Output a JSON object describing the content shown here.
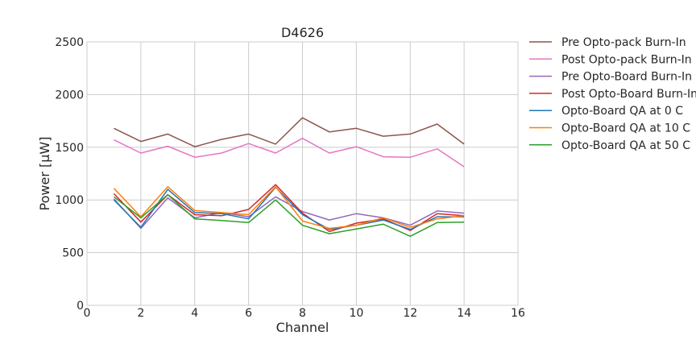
{
  "chart_data": {
    "type": "line",
    "title": "D4626",
    "xlabel": "Channel",
    "ylabel": "Power [μW]",
    "xlim": [
      0,
      16
    ],
    "ylim": [
      0,
      2500
    ],
    "xticks": [
      0,
      2,
      4,
      6,
      8,
      10,
      12,
      14,
      16
    ],
    "yticks": [
      0,
      500,
      1000,
      1500,
      2000,
      2500
    ],
    "grid": true,
    "legend_position": "right-outside",
    "x": [
      1,
      2,
      3,
      4,
      5,
      6,
      7,
      8,
      9,
      10,
      11,
      12,
      13,
      14
    ],
    "series": [
      {
        "name": "Pre Opto-pack Burn-In",
        "color": "#8c564b",
        "values": [
          1680,
          1555,
          1625,
          1505,
          1575,
          1625,
          1530,
          1780,
          1645,
          1680,
          1605,
          1625,
          1720,
          1530
        ]
      },
      {
        "name": "Post Opto-pack Burn-In",
        "color": "#e377c2",
        "values": [
          1570,
          1445,
          1510,
          1405,
          1445,
          1535,
          1445,
          1585,
          1445,
          1505,
          1410,
          1405,
          1485,
          1315
        ]
      },
      {
        "name": "Pre Opto-Board Burn-In",
        "color": "#9467bd",
        "values": [
          1010,
          730,
          1020,
          830,
          880,
          840,
          1030,
          890,
          810,
          870,
          830,
          760,
          895,
          875
        ]
      },
      {
        "name": "Post Opto-Board Burn-In",
        "color": "#d62728",
        "values": [
          1060,
          790,
          1050,
          860,
          850,
          910,
          1145,
          875,
          700,
          780,
          820,
          710,
          870,
          850
        ]
      },
      {
        "name": "Opto-Board QA at 0 C",
        "color": "#1f77b4",
        "values": [
          1000,
          740,
          1100,
          880,
          870,
          820,
          1120,
          860,
          720,
          760,
          810,
          720,
          840,
          840
        ]
      },
      {
        "name": "Opto-Board QA at 10 C",
        "color": "#ff7f0e",
        "values": [
          1110,
          840,
          1125,
          900,
          880,
          860,
          1125,
          800,
          730,
          760,
          830,
          740,
          820,
          850
        ]
      },
      {
        "name": "Opto-Board QA at 50 C",
        "color": "#2ca02c",
        "values": [
          1030,
          830,
          1050,
          820,
          805,
          785,
          1000,
          760,
          680,
          725,
          770,
          655,
          785,
          790
        ]
      }
    ]
  }
}
